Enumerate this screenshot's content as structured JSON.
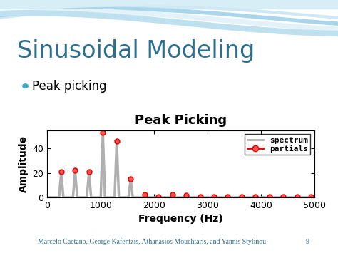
{
  "slide": {
    "title": "Sinusoidal Modeling",
    "bullet": "Peak picking",
    "footer": "Marcelo Caetano, George Kafentzis, Athanasios Mouchtaris, and Yannis Stylinou",
    "page": 9
  },
  "chart_data": {
    "type": "line",
    "title": "Peak Picking",
    "x_label": "Frequency (Hz)",
    "y_label": "Amplitude",
    "xlim": [
      0,
      5000
    ],
    "xticks": [
      0,
      1000,
      2000,
      3000,
      4000,
      5000
    ],
    "ylim": [
      0,
      55
    ],
    "yticks": [
      0,
      20,
      40
    ],
    "grid": false,
    "legend": "upper right",
    "series": [
      {
        "name": "spectrum",
        "color": "#b0b0b0",
        "marker": "none",
        "line_style": "solid",
        "x": [
          0,
          220,
          260,
          300,
          480,
          520,
          560,
          740,
          780,
          820,
          1000,
          1040,
          1080,
          1260,
          1300,
          1340,
          1520,
          1560,
          1600,
          1800,
          1820,
          1840,
          5000
        ],
        "values": [
          0,
          0,
          21,
          0,
          0,
          22,
          0,
          0,
          21,
          0,
          0,
          53,
          0,
          0,
          46,
          0,
          0,
          15,
          0,
          0,
          2,
          0,
          0
        ]
      },
      {
        "name": "partials",
        "color": "#e00000",
        "marker": "circle",
        "line_style": "none",
        "x": [
          260,
          520,
          780,
          1040,
          1300,
          1560,
          1820,
          2080,
          2340,
          2600,
          2860,
          3120,
          3380,
          3640,
          3900,
          4160,
          4420,
          4680,
          4940
        ],
        "values": [
          21,
          22,
          21,
          53,
          46,
          15,
          2,
          0.5,
          2,
          1.5,
          0.5,
          0.5,
          0.5,
          0.5,
          0.5,
          0.5,
          0.5,
          0.5,
          0.5
        ]
      }
    ]
  }
}
